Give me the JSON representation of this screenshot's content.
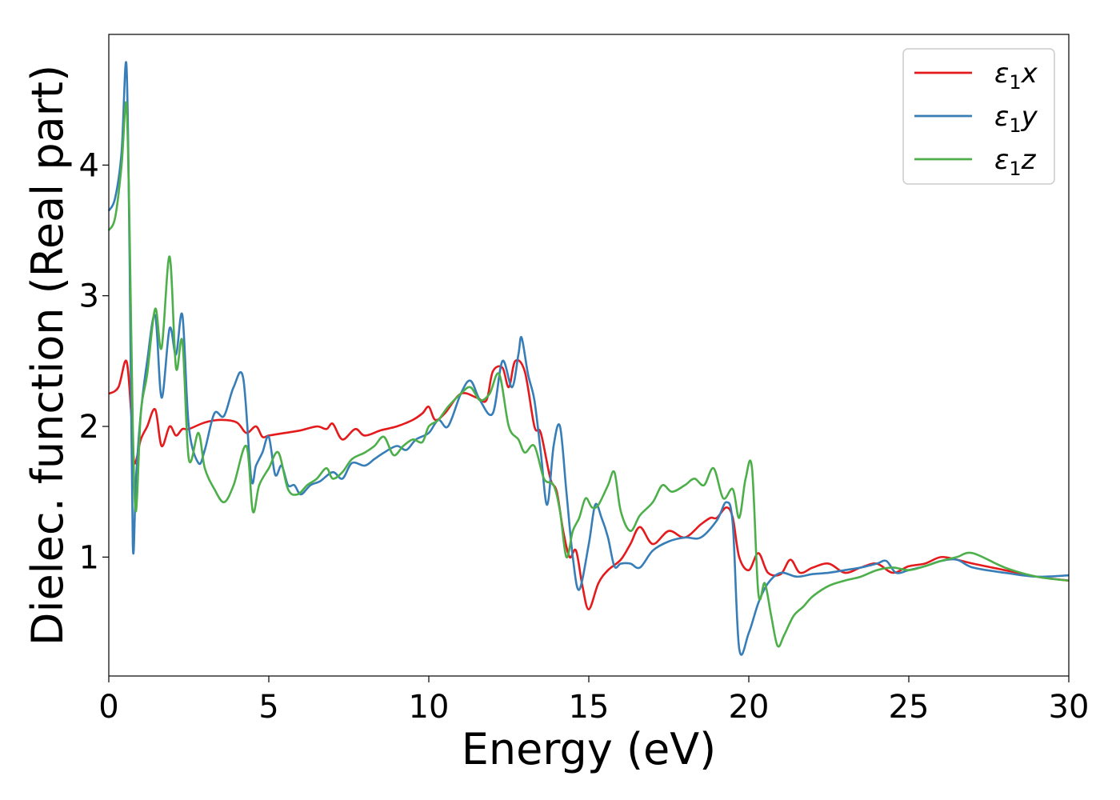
{
  "chart_data": {
    "type": "line",
    "xlabel": "Energy (eV)",
    "ylabel": "Dielec. function (Real part)",
    "xlim": [
      0,
      30
    ],
    "ylim": [
      0.09,
      5.0
    ],
    "xticks": [
      0,
      5,
      10,
      15,
      20,
      25,
      30
    ],
    "yticks": [
      1,
      2,
      3,
      4
    ],
    "grid": false,
    "legend_position": "top-right",
    "series": [
      {
        "name": "ε₁x",
        "legend_base": "ε",
        "legend_sub": "1",
        "legend_suffix": "x",
        "color": "#e41a1c",
        "x": [
          0,
          0.3,
          0.55,
          0.7,
          0.8,
          1.0,
          1.2,
          1.45,
          1.65,
          1.9,
          2.1,
          2.3,
          2.5,
          3.0,
          3.5,
          4.0,
          4.3,
          4.6,
          4.8,
          5.0,
          5.5,
          6.0,
          6.5,
          6.8,
          7.0,
          7.3,
          7.7,
          8.0,
          8.5,
          9.0,
          9.5,
          9.8,
          10.0,
          10.2,
          10.5,
          11.0,
          11.5,
          11.8,
          12.0,
          12.3,
          12.5,
          12.7,
          13.0,
          13.3,
          13.5,
          13.8,
          14.0,
          14.2,
          14.4,
          14.6,
          14.8,
          15.0,
          15.3,
          15.6,
          16.0,
          16.3,
          16.6,
          17.0,
          17.5,
          18.0,
          18.5,
          18.8,
          19.0,
          19.3,
          19.5,
          19.7,
          20.0,
          20.3,
          20.6,
          21.0,
          21.3,
          21.6,
          22.0,
          22.5,
          23.0,
          23.5,
          24.0,
          24.5,
          25.0,
          25.5,
          26.0,
          26.5,
          27.0,
          28.0,
          29.0,
          30.0
        ],
        "y": [
          2.25,
          2.3,
          2.5,
          2.1,
          1.72,
          1.9,
          2.0,
          2.13,
          1.85,
          2.0,
          1.93,
          1.98,
          1.98,
          2.03,
          2.05,
          2.03,
          1.95,
          2.0,
          1.92,
          1.93,
          1.95,
          1.97,
          2.0,
          1.98,
          2.02,
          1.9,
          1.98,
          1.93,
          1.97,
          2.0,
          2.05,
          2.1,
          2.15,
          2.05,
          2.1,
          2.25,
          2.22,
          2.2,
          2.42,
          2.45,
          2.3,
          2.5,
          2.42,
          2.0,
          1.95,
          1.6,
          1.5,
          1.2,
          1.0,
          1.05,
          0.78,
          0.6,
          0.8,
          0.9,
          0.98,
          1.1,
          1.23,
          1.1,
          1.2,
          1.15,
          1.25,
          1.3,
          1.3,
          1.38,
          1.3,
          1.0,
          0.9,
          1.03,
          0.88,
          0.87,
          0.98,
          0.88,
          0.92,
          0.95,
          0.88,
          0.92,
          0.95,
          0.88,
          0.93,
          0.95,
          1.0,
          0.98,
          0.95,
          0.9,
          0.85,
          0.82
        ]
      },
      {
        "name": "ε₁y",
        "legend_base": "ε",
        "legend_sub": "1",
        "legend_suffix": "y",
        "color": "#377eb8",
        "x": [
          0,
          0.2,
          0.4,
          0.55,
          0.65,
          0.75,
          0.85,
          1.0,
          1.2,
          1.45,
          1.65,
          1.9,
          2.1,
          2.3,
          2.5,
          2.8,
          3.0,
          3.3,
          3.6,
          3.9,
          4.2,
          4.45,
          4.6,
          4.8,
          5.0,
          5.2,
          5.4,
          5.6,
          5.8,
          6.0,
          6.3,
          6.6,
          7.0,
          7.3,
          7.6,
          8.0,
          8.3,
          8.6,
          9.0,
          9.3,
          9.6,
          10.0,
          10.3,
          10.6,
          11.0,
          11.3,
          11.6,
          12.0,
          12.3,
          12.6,
          12.8,
          12.9,
          13.1,
          13.3,
          13.5,
          13.7,
          13.9,
          14.1,
          14.3,
          14.5,
          14.7,
          15.0,
          15.2,
          15.4,
          15.6,
          15.8,
          16.0,
          16.3,
          16.6,
          17.0,
          17.5,
          18.0,
          18.5,
          19.0,
          19.3,
          19.5,
          19.7,
          20.0,
          20.3,
          20.6,
          21.0,
          21.5,
          22.0,
          22.5,
          23.0,
          23.5,
          24.0,
          24.3,
          24.6,
          25.0,
          25.5,
          26.0,
          26.5,
          27.0,
          28.0,
          29.0,
          30.0
        ],
        "y": [
          3.65,
          3.75,
          4.1,
          4.77,
          3.3,
          1.1,
          1.6,
          2.1,
          2.5,
          2.85,
          2.22,
          2.75,
          2.55,
          2.85,
          2.0,
          1.72,
          1.82,
          2.1,
          2.08,
          2.3,
          2.37,
          1.6,
          1.7,
          1.8,
          1.92,
          1.63,
          1.7,
          1.55,
          1.55,
          1.48,
          1.55,
          1.58,
          1.65,
          1.6,
          1.72,
          1.7,
          1.75,
          1.8,
          1.85,
          1.82,
          1.9,
          1.95,
          2.05,
          2.0,
          2.25,
          2.35,
          2.2,
          2.1,
          2.5,
          2.3,
          2.55,
          2.68,
          2.4,
          2.2,
          1.8,
          1.4,
          1.85,
          2.0,
          1.5,
          1.0,
          0.75,
          1.1,
          1.4,
          1.3,
          1.15,
          0.93,
          0.95,
          0.95,
          0.92,
          1.05,
          1.12,
          1.15,
          1.15,
          1.28,
          1.42,
          1.25,
          0.3,
          0.42,
          0.65,
          0.8,
          0.88,
          0.85,
          0.87,
          0.88,
          0.9,
          0.92,
          0.95,
          0.97,
          0.88,
          0.9,
          0.93,
          0.97,
          0.98,
          0.92,
          0.88,
          0.85,
          0.86
        ]
      },
      {
        "name": "ε₁z",
        "legend_base": "ε",
        "legend_sub": "1",
        "legend_suffix": "z",
        "color": "#4daf4a",
        "x": [
          0,
          0.2,
          0.4,
          0.55,
          0.65,
          0.75,
          0.85,
          1.0,
          1.2,
          1.45,
          1.65,
          1.9,
          2.1,
          2.3,
          2.5,
          2.8,
          3.0,
          3.3,
          3.6,
          3.9,
          4.3,
          4.5,
          4.7,
          5.0,
          5.3,
          5.6,
          5.9,
          6.2,
          6.5,
          6.8,
          7.0,
          7.3,
          7.6,
          8.0,
          8.3,
          8.6,
          8.9,
          9.2,
          9.5,
          9.8,
          10.0,
          10.3,
          10.6,
          11.0,
          11.3,
          11.6,
          11.9,
          12.2,
          12.5,
          12.8,
          13.0,
          13.3,
          13.6,
          13.9,
          14.1,
          14.3,
          14.5,
          14.7,
          14.9,
          15.1,
          15.3,
          15.6,
          15.8,
          16.0,
          16.3,
          16.6,
          17.0,
          17.3,
          17.6,
          18.0,
          18.3,
          18.6,
          18.9,
          19.2,
          19.5,
          19.7,
          19.9,
          20.1,
          20.3,
          20.5,
          20.7,
          20.9,
          21.1,
          21.4,
          21.7,
          22.0,
          22.5,
          23.0,
          23.5,
          24.0,
          24.5,
          25.0,
          25.5,
          26.0,
          26.5,
          27.0,
          28.0,
          29.0,
          30.0
        ],
        "y": [
          3.5,
          3.6,
          4.0,
          4.47,
          3.5,
          2.0,
          1.35,
          2.1,
          2.4,
          2.9,
          2.6,
          3.3,
          2.45,
          2.65,
          1.75,
          1.95,
          1.68,
          1.52,
          1.42,
          1.55,
          1.85,
          1.35,
          1.55,
          1.68,
          1.8,
          1.52,
          1.48,
          1.55,
          1.6,
          1.68,
          1.6,
          1.65,
          1.75,
          1.8,
          1.85,
          1.92,
          1.78,
          1.85,
          1.9,
          1.88,
          2.0,
          2.05,
          2.15,
          2.25,
          2.3,
          2.2,
          2.25,
          2.4,
          2.0,
          1.9,
          1.8,
          1.85,
          1.6,
          1.55,
          1.35,
          1.0,
          1.2,
          1.3,
          1.45,
          1.38,
          1.4,
          1.55,
          1.65,
          1.35,
          1.2,
          1.32,
          1.42,
          1.55,
          1.5,
          1.55,
          1.6,
          1.55,
          1.68,
          1.45,
          1.52,
          1.3,
          1.6,
          1.68,
          0.72,
          0.8,
          0.55,
          0.32,
          0.4,
          0.55,
          0.62,
          0.7,
          0.78,
          0.82,
          0.85,
          0.9,
          0.92,
          0.9,
          0.93,
          0.97,
          1.0,
          1.03,
          0.92,
          0.85,
          0.82
        ]
      }
    ]
  }
}
